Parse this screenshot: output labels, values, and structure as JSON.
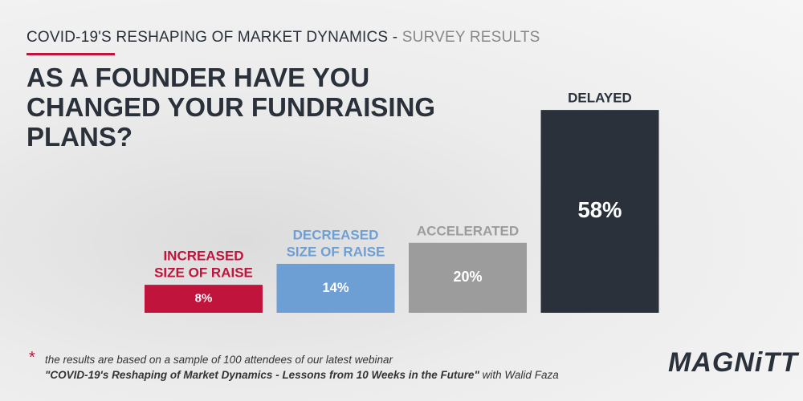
{
  "chart_data": {
    "type": "bar",
    "kicker": "COVID-19'S RESHAPING OF MARKET DYNAMICS - ",
    "kicker_sub": "SURVEY RESULTS",
    "title": "AS A FOUNDER HAVE YOU CHANGED YOUR FUNDRAISING PLANS?",
    "categories": [
      [
        "INCREASED",
        "SIZE OF RAISE"
      ],
      [
        "DECREASED",
        "SIZE OF RAISE"
      ],
      [
        "ACCELERATED"
      ],
      [
        "DELAYED"
      ]
    ],
    "values": [
      8,
      14,
      20,
      58
    ],
    "value_labels": [
      "8%",
      "14%",
      "20%",
      "58%"
    ],
    "colors": [
      "#c0143c",
      "#6e9fd4",
      "#9c9c9c",
      "#2a313b"
    ],
    "footnote_mark": "*",
    "footnote": "the results are based on a sample of 100 attendees of our latest webinar",
    "footnote_webinar": "\"COVID-19's Reshaping of Market Dynamics - Lessons from 10 Weeks in the Future\"",
    "footnote_tail": "with Walid Faza",
    "logo": "MAGNiTT"
  }
}
